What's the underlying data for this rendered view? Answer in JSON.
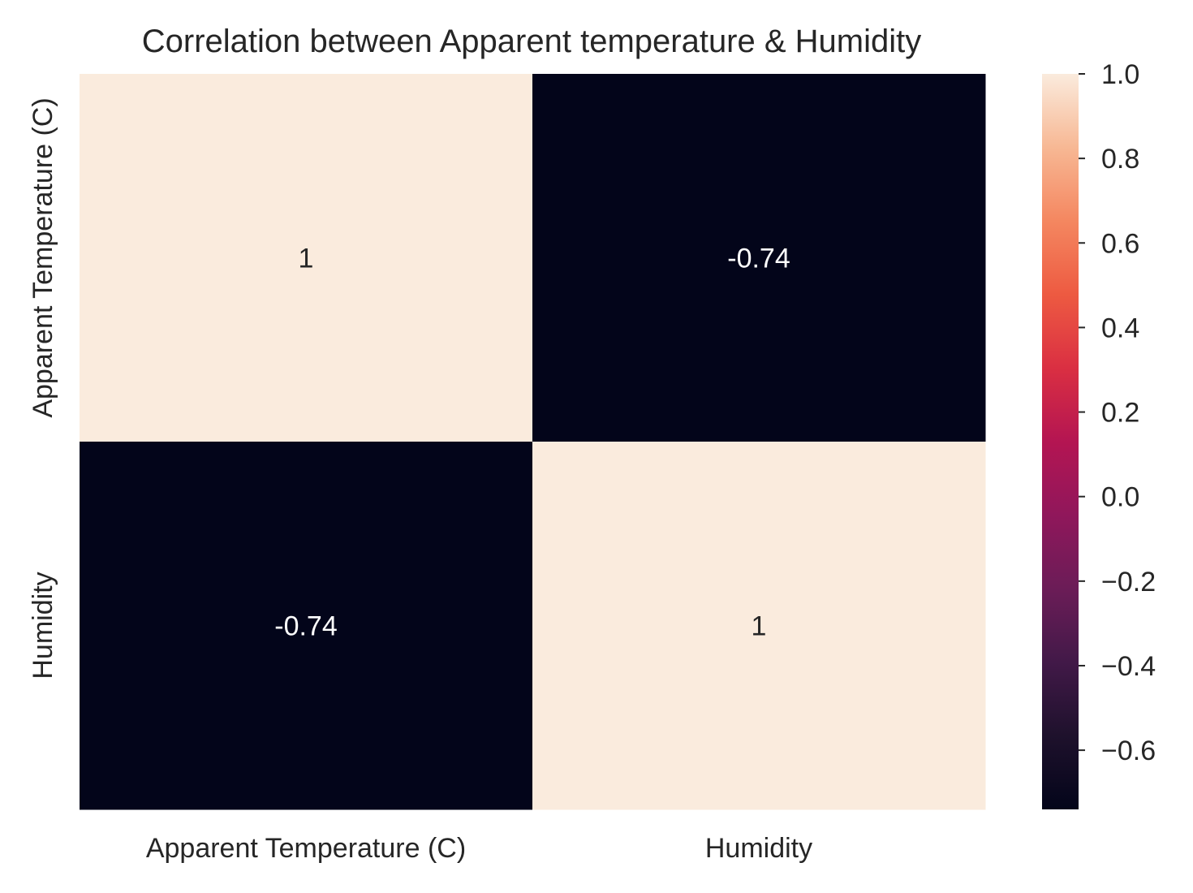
{
  "chart_data": {
    "type": "heatmap",
    "title": "Correlation between Apparent temperature & Humidity",
    "xlabel": "",
    "ylabel": "",
    "x_categories": [
      "Apparent Temperature (C)",
      "Humidity"
    ],
    "y_categories": [
      "Apparent Temperature (C)",
      "Humidity"
    ],
    "values": [
      [
        1,
        -0.74
      ],
      [
        -0.74,
        1
      ]
    ],
    "annotations": [
      [
        "1",
        "-0.74"
      ],
      [
        "-0.74",
        "1"
      ]
    ],
    "colorbar": {
      "vmin": -0.74,
      "vmax": 1.0,
      "ticks": [
        1.0,
        0.8,
        0.6,
        0.4,
        0.2,
        0.0,
        -0.2,
        -0.4,
        -0.6
      ],
      "tick_labels": [
        "1.0",
        "0.8",
        "0.6",
        "0.4",
        "0.2",
        "0.0",
        "−0.2",
        "−0.4",
        "−0.6"
      ]
    },
    "colormap": "rocket",
    "colors": {
      "low": "#03051a",
      "high": "#faebdd",
      "text_on_dark": "#ffffff",
      "text_on_light": "#262626"
    },
    "grid": false
  }
}
